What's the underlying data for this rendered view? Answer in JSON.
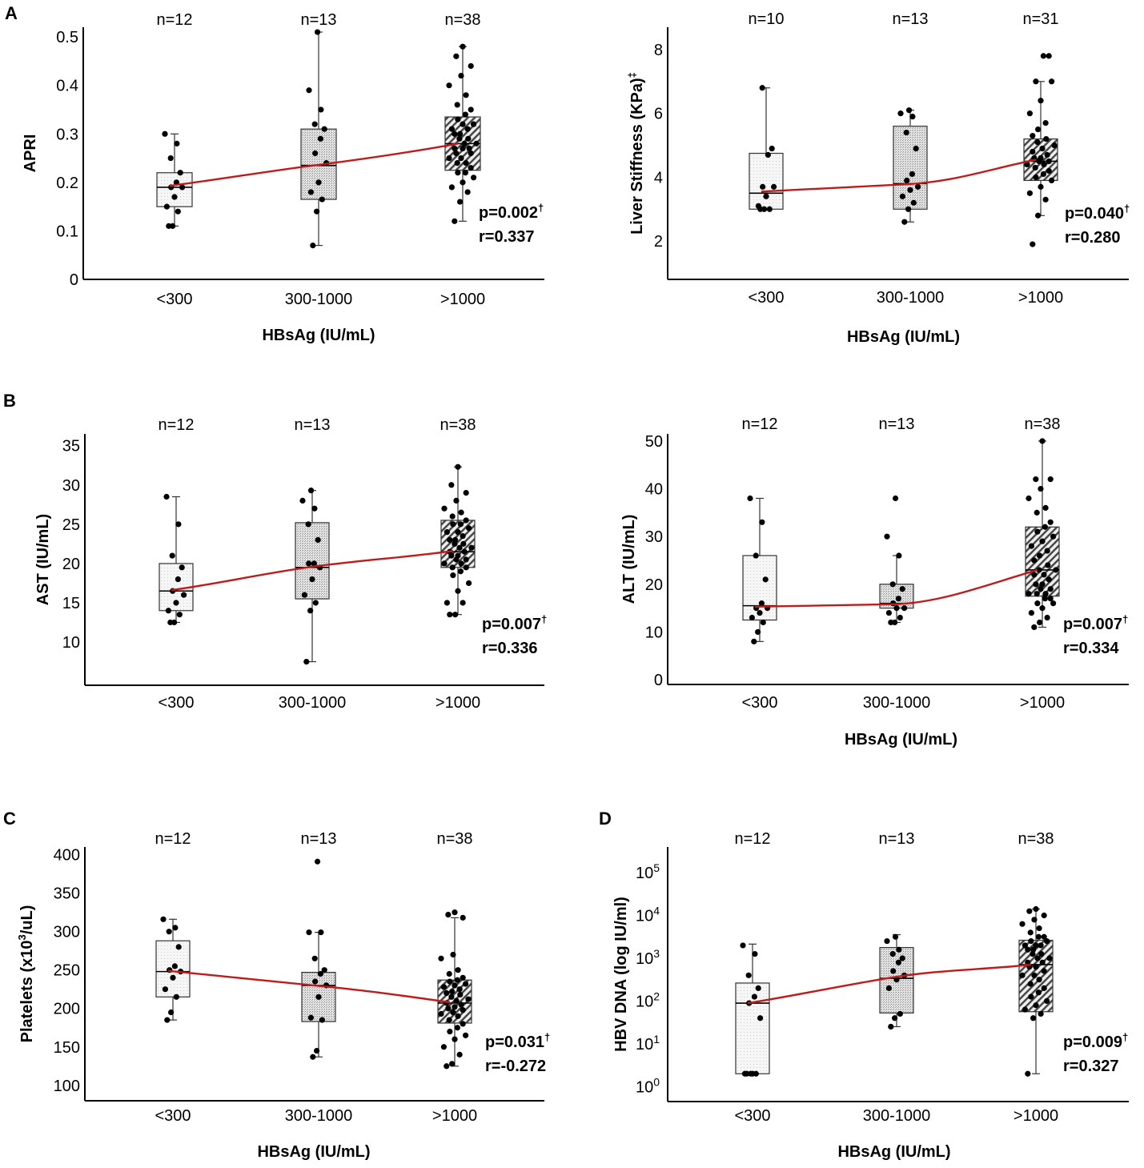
{
  "panel_labels": [
    "A",
    "B",
    "C",
    "D"
  ],
  "colors": {
    "trend": "#c01a1a",
    "axis": "#000000",
    "box_stroke": "#333333",
    "dot": "#000000"
  },
  "chart_data": [
    {
      "id": "apri",
      "panel": "A",
      "type": "box",
      "ylabel": "APRI",
      "xlabel": "HBsAg (IU/mL)",
      "categories": [
        "<300",
        "300-1000",
        ">1000"
      ],
      "n_labels": [
        "n=12",
        "n=13",
        "n=38"
      ],
      "ylim": [
        0,
        0.52
      ],
      "yticks": [
        0,
        0.1,
        0.2,
        0.3,
        0.4,
        0.5
      ],
      "ytick_labels": [
        "0",
        "0.1",
        "0.2",
        "0.3",
        "0.4",
        "0.5"
      ],
      "boxes": [
        {
          "min": 0.11,
          "q1": 0.15,
          "median": 0.19,
          "q3": 0.22,
          "max": 0.3,
          "fill": "light"
        },
        {
          "min": 0.07,
          "q1": 0.165,
          "median": 0.235,
          "q3": 0.31,
          "max": 0.51,
          "fill": "dots"
        },
        {
          "min": 0.12,
          "q1": 0.225,
          "median": 0.28,
          "q3": 0.335,
          "max": 0.48,
          "fill": "hatch"
        }
      ],
      "points": [
        [
          0.11,
          0.11,
          0.14,
          0.15,
          0.17,
          0.19,
          0.19,
          0.2,
          0.22,
          0.25,
          0.28,
          0.3
        ],
        [
          0.07,
          0.14,
          0.165,
          0.18,
          0.2,
          0.24,
          0.26,
          0.29,
          0.31,
          0.32,
          0.35,
          0.39,
          0.51
        ],
        [
          0.12,
          0.16,
          0.18,
          0.19,
          0.2,
          0.21,
          0.22,
          0.22,
          0.23,
          0.24,
          0.24,
          0.25,
          0.25,
          0.26,
          0.26,
          0.27,
          0.27,
          0.27,
          0.28,
          0.28,
          0.29,
          0.29,
          0.3,
          0.3,
          0.31,
          0.31,
          0.32,
          0.32,
          0.33,
          0.34,
          0.35,
          0.36,
          0.38,
          0.4,
          0.42,
          0.44,
          0.46,
          0.48
        ]
      ],
      "trend": [
        0.193,
        0.235,
        0.28
      ],
      "stat_p": "p=0.002",
      "stat_p_sup": "†",
      "stat_r": "r=0.337"
    },
    {
      "id": "liver",
      "panel": "",
      "type": "box",
      "ylabel": "Liver Stiffness (KPa)",
      "ylabel_sup": "‡",
      "xlabel": "HBsAg (IU/mL)",
      "categories": [
        "<300",
        "300-1000",
        ">1000"
      ],
      "n_labels": [
        "n=10",
        "n=13",
        "n=31"
      ],
      "ylim": [
        0.8,
        8.7
      ],
      "yticks": [
        2,
        4,
        6,
        8
      ],
      "ytick_labels": [
        "2",
        "4",
        "6",
        "8"
      ],
      "boxes": [
        {
          "min": 3.0,
          "q1": 3.0,
          "median": 3.5,
          "q3": 4.75,
          "max": 6.8,
          "fill": "light"
        },
        {
          "min": 2.6,
          "q1": 3.0,
          "median": 3.8,
          "q3": 5.6,
          "max": 6.1,
          "fill": "dots"
        },
        {
          "min": 2.8,
          "q1": 3.9,
          "median": 4.5,
          "q3": 5.2,
          "max": 7.0,
          "fill": "hatch"
        }
      ],
      "points": [
        [
          3.0,
          3.0,
          3.0,
          3.1,
          3.4,
          3.7,
          3.7,
          4.7,
          4.9,
          6.8
        ],
        [
          2.6,
          3.0,
          3.2,
          3.4,
          3.6,
          3.7,
          3.9,
          4.1,
          4.9,
          5.4,
          5.9,
          6.0,
          6.1
        ],
        [
          1.9,
          2.8,
          3.3,
          3.5,
          3.7,
          3.9,
          4.0,
          4.1,
          4.2,
          4.3,
          4.4,
          4.4,
          4.5,
          4.5,
          4.6,
          4.6,
          4.7,
          4.8,
          4.9,
          5.0,
          5.1,
          5.2,
          5.3,
          5.5,
          5.7,
          6.0,
          6.4,
          7.0,
          7.0,
          7.8,
          7.8
        ]
      ],
      "trend": [
        3.55,
        3.78,
        4.55
      ],
      "stat_p": "p=0.040",
      "stat_p_sup": "†",
      "stat_r": "r=0.280"
    },
    {
      "id": "ast",
      "panel": "B",
      "type": "box",
      "ylabel": "AST (IU/mL)",
      "xlabel": "",
      "categories": [
        "<300",
        "300-1000",
        ">1000"
      ],
      "n_labels": [
        "n=12",
        "n=13",
        "n=38"
      ],
      "ylim": [
        4.5,
        36.5
      ],
      "yticks": [
        10,
        15,
        20,
        25,
        30,
        35
      ],
      "ytick_labels": [
        "10",
        "15",
        "20",
        "25",
        "30",
        "35"
      ],
      "boxes": [
        {
          "min": 12.5,
          "q1": 14.0,
          "median": 16.5,
          "q3": 20.0,
          "max": 28.5,
          "fill": "light"
        },
        {
          "min": 7.5,
          "q1": 15.5,
          "median": 19.5,
          "q3": 25.2,
          "max": 29.3,
          "fill": "dots"
        },
        {
          "min": 13.5,
          "q1": 19.5,
          "median": 21.5,
          "q3": 25.5,
          "max": 32.3,
          "fill": "hatch"
        }
      ],
      "points": [
        [
          12.5,
          12.5,
          13.5,
          14.0,
          15.0,
          16.0,
          16.5,
          18.0,
          19.5,
          21.0,
          25.0,
          28.5
        ],
        [
          7.5,
          14.0,
          15.0,
          16.0,
          18.0,
          19.5,
          20.0,
          20.0,
          23.0,
          25.0,
          27.0,
          28.0,
          29.3
        ],
        [
          13.5,
          13.5,
          15.0,
          15.0,
          16.5,
          17.5,
          18.5,
          19.0,
          19.5,
          19.5,
          20.0,
          20.0,
          20.5,
          20.5,
          21.0,
          21.0,
          21.5,
          21.5,
          22.0,
          22.0,
          22.5,
          22.5,
          23.0,
          23.0,
          23.5,
          24.0,
          24.0,
          24.5,
          25.0,
          25.0,
          25.5,
          26.0,
          26.5,
          27.0,
          28.0,
          29.0,
          30.0,
          32.3
        ]
      ],
      "trend": [
        16.6,
        19.5,
        21.6
      ],
      "stat_p": "p=0.007",
      "stat_p_sup": "†",
      "stat_r": "r=0.336"
    },
    {
      "id": "alt",
      "panel": "",
      "type": "box",
      "ylabel": "ALT (IU/mL)",
      "xlabel": "HBsAg (IU/mL)",
      "categories": [
        "<300",
        "300-1000",
        ">1000"
      ],
      "n_labels": [
        "n=12",
        "n=13",
        "n=38"
      ],
      "ylim": [
        -1,
        51.5
      ],
      "yticks": [
        0,
        10,
        20,
        30,
        40,
        50
      ],
      "ytick_labels": [
        "0",
        "10",
        "20",
        "30",
        "40",
        "50"
      ],
      "boxes": [
        {
          "min": 8,
          "q1": 12.5,
          "median": 15.5,
          "q3": 26,
          "max": 38,
          "fill": "light"
        },
        {
          "min": 12,
          "q1": 15,
          "median": 16,
          "q3": 20,
          "max": 26,
          "fill": "dots"
        },
        {
          "min": 11,
          "q1": 17.5,
          "median": 23,
          "q3": 32,
          "max": 50,
          "fill": "hatch"
        }
      ],
      "points": [
        [
          8,
          10,
          12,
          13,
          14,
          15,
          15,
          16,
          21,
          26,
          33,
          38
        ],
        [
          12,
          12,
          13,
          14,
          15,
          15,
          16,
          17,
          19,
          20,
          26,
          30,
          38
        ],
        [
          11,
          12,
          13,
          14,
          15,
          16,
          16,
          17,
          17,
          18,
          18,
          18,
          19,
          19,
          20,
          20,
          21,
          22,
          22,
          23,
          23,
          24,
          25,
          26,
          27,
          28,
          29,
          30,
          31,
          32,
          33,
          35,
          36,
          38,
          40,
          42,
          42,
          50
        ]
      ],
      "trend": [
        15.3,
        15.8,
        23.0
      ],
      "stat_p": "p=0.007",
      "stat_p_sup": "†",
      "stat_r": "r=0.334"
    },
    {
      "id": "platelets",
      "panel": "C",
      "type": "box",
      "ylabel": "Platelets (x10",
      "ylabel_sup": "3",
      "ylabel_tail": "/uL)",
      "xlabel": "HBsAg (IU/mL)",
      "categories": [
        "<300",
        "300-1000",
        ">1000"
      ],
      "n_labels": [
        "n=12",
        "n=13",
        "n=38"
      ],
      "ylim": [
        80,
        410
      ],
      "yticks": [
        100,
        150,
        200,
        250,
        300,
        350,
        400
      ],
      "ytick_labels": [
        "100",
        "150",
        "200",
        "250",
        "300",
        "350",
        "400"
      ],
      "boxes": [
        {
          "min": 185,
          "q1": 215,
          "median": 248,
          "q3": 288,
          "max": 316,
          "fill": "light"
        },
        {
          "min": 137,
          "q1": 183,
          "median": 230,
          "q3": 247,
          "max": 299,
          "fill": "dots"
        },
        {
          "min": 125,
          "q1": 181,
          "median": 207,
          "q3": 237,
          "max": 318,
          "fill": "hatch"
        }
      ],
      "points": [
        [
          185,
          195,
          215,
          225,
          240,
          248,
          250,
          255,
          280,
          300,
          305,
          316
        ],
        [
          137,
          145,
          185,
          188,
          215,
          230,
          235,
          245,
          250,
          265,
          299,
          299,
          391
        ],
        [
          125,
          128,
          140,
          150,
          160,
          165,
          170,
          175,
          180,
          185,
          190,
          193,
          195,
          198,
          200,
          202,
          205,
          207,
          210,
          212,
          215,
          218,
          220,
          222,
          225,
          228,
          230,
          232,
          235,
          237,
          240,
          245,
          250,
          265,
          270,
          318,
          322,
          325
        ]
      ],
      "trend": [
        249,
        230,
        208
      ],
      "stat_p": "p=0.031",
      "stat_p_sup": "†",
      "stat_r": "r=-0.272"
    },
    {
      "id": "hbvdna",
      "panel": "D",
      "type": "box",
      "ylabel": "HBV DNA (log IU/ml)",
      "xlabel": "HBsAg (IU/mL)",
      "categories": [
        "<300",
        "300-1000",
        ">1000"
      ],
      "n_labels": [
        "n=12",
        "n=13",
        "n=38"
      ],
      "ylim": [
        -0.35,
        5.6
      ],
      "yticks": [
        0,
        1,
        2,
        3,
        4,
        5
      ],
      "ytick_base": "10",
      "ytick_exps": [
        "0",
        "1",
        "2",
        "3",
        "4",
        "5"
      ],
      "boxes": [
        {
          "min": 0.3,
          "q1": 0.3,
          "median": 1.95,
          "q3": 2.42,
          "max": 3.33,
          "fill": "light"
        },
        {
          "min": 1.4,
          "q1": 1.72,
          "median": 2.53,
          "q3": 3.25,
          "max": 3.55,
          "fill": "dots"
        },
        {
          "min": 0.3,
          "q1": 1.75,
          "median": 2.85,
          "q3": 3.42,
          "max": 4.15,
          "fill": "hatch"
        }
      ],
      "points": [
        [
          0.3,
          0.3,
          0.3,
          0.3,
          0.3,
          1.6,
          1.95,
          2.1,
          2.3,
          2.6,
          3.1,
          3.3
        ],
        [
          1.4,
          1.6,
          1.7,
          2.3,
          2.5,
          2.6,
          2.7,
          2.9,
          3.0,
          3.1,
          3.2,
          3.4,
          3.5
        ],
        [
          0.3,
          1.6,
          1.7,
          1.8,
          1.9,
          2.0,
          2.1,
          2.2,
          2.3,
          2.4,
          2.5,
          2.6,
          2.6,
          2.7,
          2.8,
          2.8,
          2.9,
          2.9,
          3.0,
          3.0,
          3.1,
          3.1,
          3.2,
          3.2,
          3.3,
          3.3,
          3.3,
          3.4,
          3.4,
          3.5,
          3.5,
          3.6,
          3.7,
          3.8,
          3.9,
          4.0,
          4.1,
          4.15
        ]
      ],
      "trend": [
        1.95,
        2.55,
        2.85
      ],
      "stat_p": "p=0.009",
      "stat_p_sup": "†",
      "stat_r": "r=0.327"
    }
  ]
}
